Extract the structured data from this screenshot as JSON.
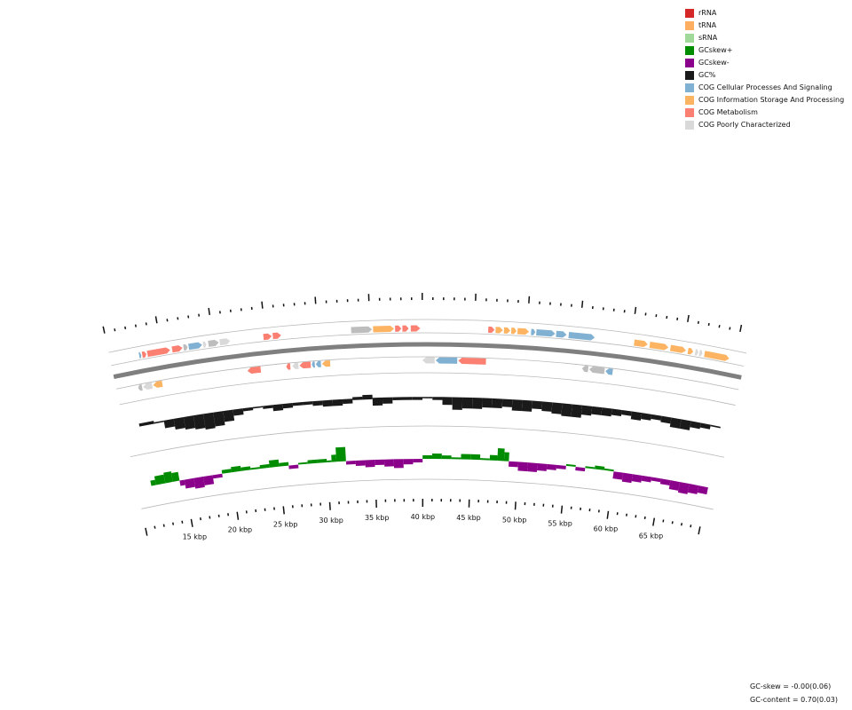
{
  "legend": [
    {
      "label": "rRNA",
      "color": "#d62728"
    },
    {
      "label": "tRNA",
      "color": "#fdae61"
    },
    {
      "label": "sRNA",
      "color": "#a1d99b"
    },
    {
      "label": "GCskew+",
      "color": "#008c00"
    },
    {
      "label": "GCskew-",
      "color": "#8b008b"
    },
    {
      "label": "GC%",
      "color": "#1a1a1a"
    },
    {
      "label": "COG Cellular Processes And Signaling",
      "color": "#80b1d3"
    },
    {
      "label": "COG Information Storage And Processing",
      "color": "#fdb462"
    },
    {
      "label": "COG Metabolism",
      "color": "#fb8072"
    },
    {
      "label": "COG Poorly Characterized",
      "color": "#d9d9d9"
    }
  ],
  "scale_labels": [
    "15 kbp",
    "20 kbp",
    "25 kbp",
    "30 kbp",
    "35 kbp",
    "40 kbp",
    "45 kbp",
    "50 kbp",
    "55 kbp",
    "60 kbp",
    "65 kbp"
  ],
  "stats": {
    "gc_skew": "GC-skew = -0.00(0.06)",
    "gc_content": "GC-content = 0.70(0.03)"
  },
  "colors": {
    "cellular": "#80b1d3",
    "information": "#fdb462",
    "metabolism": "#fb8072",
    "poorly": "#d9d9d9",
    "uncategorized": "#bdbdbd",
    "gc": "#1a1a1a",
    "skew_pos": "#008c00",
    "skew_neg": "#8b008b",
    "backbone": "#7f7f7f"
  },
  "features": {
    "forward": [
      {
        "start": 12.8,
        "end": 13.0,
        "cat": "cellular"
      },
      {
        "start": 13.1,
        "end": 13.5,
        "cat": "metabolism"
      },
      {
        "start": 13.6,
        "end": 15.8,
        "cat": "metabolism"
      },
      {
        "start": 16.0,
        "end": 17.0,
        "cat": "metabolism"
      },
      {
        "start": 17.1,
        "end": 17.5,
        "cat": "uncategorized"
      },
      {
        "start": 17.6,
        "end": 18.9,
        "cat": "cellular"
      },
      {
        "start": 19.0,
        "end": 19.3,
        "cat": "poorly"
      },
      {
        "start": 19.5,
        "end": 20.5,
        "cat": "uncategorized"
      },
      {
        "start": 20.6,
        "end": 21.6,
        "cat": "poorly"
      },
      {
        "start": 24.8,
        "end": 25.6,
        "cat": "metabolism"
      },
      {
        "start": 25.7,
        "end": 26.5,
        "cat": "metabolism"
      },
      {
        "start": 33.2,
        "end": 35.2,
        "cat": "uncategorized"
      },
      {
        "start": 35.3,
        "end": 37.3,
        "cat": "information"
      },
      {
        "start": 37.4,
        "end": 38.0,
        "cat": "metabolism"
      },
      {
        "start": 38.1,
        "end": 38.7,
        "cat": "metabolism"
      },
      {
        "start": 38.9,
        "end": 39.8,
        "cat": "metabolism"
      },
      {
        "start": 46.3,
        "end": 46.9,
        "cat": "metabolism"
      },
      {
        "start": 47.0,
        "end": 47.7,
        "cat": "information"
      },
      {
        "start": 47.8,
        "end": 48.4,
        "cat": "information"
      },
      {
        "start": 48.5,
        "end": 49.0,
        "cat": "information"
      },
      {
        "start": 49.1,
        "end": 50.2,
        "cat": "information"
      },
      {
        "start": 50.4,
        "end": 50.8,
        "cat": "cellular"
      },
      {
        "start": 50.9,
        "end": 52.7,
        "cat": "cellular"
      },
      {
        "start": 52.8,
        "end": 53.8,
        "cat": "cellular"
      },
      {
        "start": 54.0,
        "end": 56.5,
        "cat": "cellular"
      },
      {
        "start": 60.3,
        "end": 61.6,
        "cat": "information"
      },
      {
        "start": 61.8,
        "end": 63.6,
        "cat": "information"
      },
      {
        "start": 63.8,
        "end": 65.3,
        "cat": "information"
      },
      {
        "start": 65.5,
        "end": 66.0,
        "cat": "information"
      },
      {
        "start": 66.2,
        "end": 66.5,
        "cat": "poorly"
      },
      {
        "start": 66.6,
        "end": 66.9,
        "cat": "poorly"
      },
      {
        "start": 67.1,
        "end": 69.5,
        "cat": "information"
      }
    ],
    "reverse": [
      {
        "start": 12.1,
        "end": 12.5,
        "cat": "uncategorized"
      },
      {
        "start": 12.6,
        "end": 13.5,
        "cat": "poorly"
      },
      {
        "start": 13.6,
        "end": 14.5,
        "cat": "information"
      },
      {
        "start": 22.9,
        "end": 24.2,
        "cat": "metabolism"
      },
      {
        "start": 26.7,
        "end": 27.1,
        "cat": "metabolism"
      },
      {
        "start": 27.3,
        "end": 27.9,
        "cat": "poorly"
      },
      {
        "start": 28.0,
        "end": 29.1,
        "cat": "metabolism"
      },
      {
        "start": 29.2,
        "end": 29.5,
        "cat": "cellular"
      },
      {
        "start": 29.6,
        "end": 30.1,
        "cat": "cellular"
      },
      {
        "start": 30.2,
        "end": 31.0,
        "cat": "information"
      },
      {
        "start": 40.0,
        "end": 41.2,
        "cat": "poorly"
      },
      {
        "start": 41.3,
        "end": 43.4,
        "cat": "cellular"
      },
      {
        "start": 43.5,
        "end": 46.2,
        "cat": "metabolism"
      },
      {
        "start": 55.6,
        "end": 56.2,
        "cat": "uncategorized"
      },
      {
        "start": 56.3,
        "end": 57.8,
        "cat": "uncategorized"
      },
      {
        "start": 57.9,
        "end": 58.6,
        "cat": "cellular"
      }
    ]
  },
  "gc_percent": [
    [
      11.5,
      0.71
    ],
    [
      13,
      0.7
    ],
    [
      14,
      0.66
    ],
    [
      15,
      0.64
    ],
    [
      16,
      0.63
    ],
    [
      17,
      0.62
    ],
    [
      18,
      0.61
    ],
    [
      19,
      0.62
    ],
    [
      20,
      0.64
    ],
    [
      21,
      0.67
    ],
    [
      22,
      0.69
    ],
    [
      23,
      0.7
    ],
    [
      24,
      0.69
    ],
    [
      25,
      0.67
    ],
    [
      26,
      0.68
    ],
    [
      27,
      0.69
    ],
    [
      28,
      0.69
    ],
    [
      29,
      0.68
    ],
    [
      30,
      0.67
    ],
    [
      31,
      0.67
    ],
    [
      32,
      0.68
    ],
    [
      33,
      0.71
    ],
    [
      34,
      0.72
    ],
    [
      35,
      0.66
    ],
    [
      36,
      0.67
    ],
    [
      37,
      0.69
    ],
    [
      38,
      0.69
    ],
    [
      39,
      0.69
    ],
    [
      40,
      0.7
    ],
    [
      41,
      0.69
    ],
    [
      42,
      0.66
    ],
    [
      43,
      0.63
    ],
    [
      44,
      0.64
    ],
    [
      45,
      0.64
    ],
    [
      46,
      0.65
    ],
    [
      47,
      0.65
    ],
    [
      48,
      0.66
    ],
    [
      49,
      0.64
    ],
    [
      50,
      0.64
    ],
    [
      51,
      0.66
    ],
    [
      52,
      0.65
    ],
    [
      53,
      0.64
    ],
    [
      54,
      0.63
    ],
    [
      55,
      0.63
    ],
    [
      56,
      0.65
    ],
    [
      57,
      0.66
    ],
    [
      58,
      0.66
    ],
    [
      59,
      0.67
    ],
    [
      60,
      0.68
    ],
    [
      61,
      0.66
    ],
    [
      62,
      0.67
    ],
    [
      63,
      0.68
    ],
    [
      64,
      0.67
    ],
    [
      65,
      0.65
    ],
    [
      66,
      0.65
    ],
    [
      67,
      0.67
    ],
    [
      68,
      0.68
    ],
    [
      69,
      0.7
    ]
  ],
  "gc_skew": [
    [
      11.5,
      0.03
    ],
    [
      12,
      0.05
    ],
    [
      13,
      0.06
    ],
    [
      13.8,
      0.05
    ],
    [
      14.5,
      -0.03
    ],
    [
      15,
      -0.05
    ],
    [
      16,
      -0.06
    ],
    [
      17,
      -0.05
    ],
    [
      18,
      -0.02
    ],
    [
      19,
      0.02
    ],
    [
      20,
      0.03
    ],
    [
      21,
      0.02
    ],
    [
      22,
      0.01
    ],
    [
      23,
      0.02
    ],
    [
      24,
      0.04
    ],
    [
      25,
      0.02
    ],
    [
      26,
      -0.02
    ],
    [
      27,
      0.01
    ],
    [
      28,
      0.02
    ],
    [
      29,
      0.02
    ],
    [
      30,
      0.01
    ],
    [
      30.5,
      0.04
    ],
    [
      31,
      0.08
    ],
    [
      32,
      -0.02
    ],
    [
      33,
      -0.03
    ],
    [
      34,
      -0.04
    ],
    [
      35,
      -0.03
    ],
    [
      36,
      -0.04
    ],
    [
      37,
      -0.05
    ],
    [
      38,
      -0.03
    ],
    [
      39,
      -0.02
    ],
    [
      40,
      0.02
    ],
    [
      41,
      0.03
    ],
    [
      42,
      0.02
    ],
    [
      43,
      0.01
    ],
    [
      44,
      0.03
    ],
    [
      45,
      0.03
    ],
    [
      46,
      0.01
    ],
    [
      47,
      0.03
    ],
    [
      47.8,
      0.07
    ],
    [
      48.5,
      0.05
    ],
    [
      49,
      -0.03
    ],
    [
      50,
      -0.05
    ],
    [
      51,
      -0.05
    ],
    [
      52,
      -0.04
    ],
    [
      53,
      -0.03
    ],
    [
      54,
      -0.02
    ],
    [
      55,
      0.01
    ],
    [
      56,
      -0.02
    ],
    [
      57,
      0.01
    ],
    [
      58,
      0.02
    ],
    [
      59,
      0.01
    ],
    [
      60,
      -0.04
    ],
    [
      61,
      -0.05
    ],
    [
      62,
      -0.04
    ],
    [
      63,
      -0.03
    ],
    [
      64,
      -0.02
    ],
    [
      65,
      -0.03
    ],
    [
      66,
      -0.05
    ],
    [
      67,
      -0.06
    ],
    [
      68,
      -0.05
    ],
    [
      69,
      -0.04
    ]
  ]
}
